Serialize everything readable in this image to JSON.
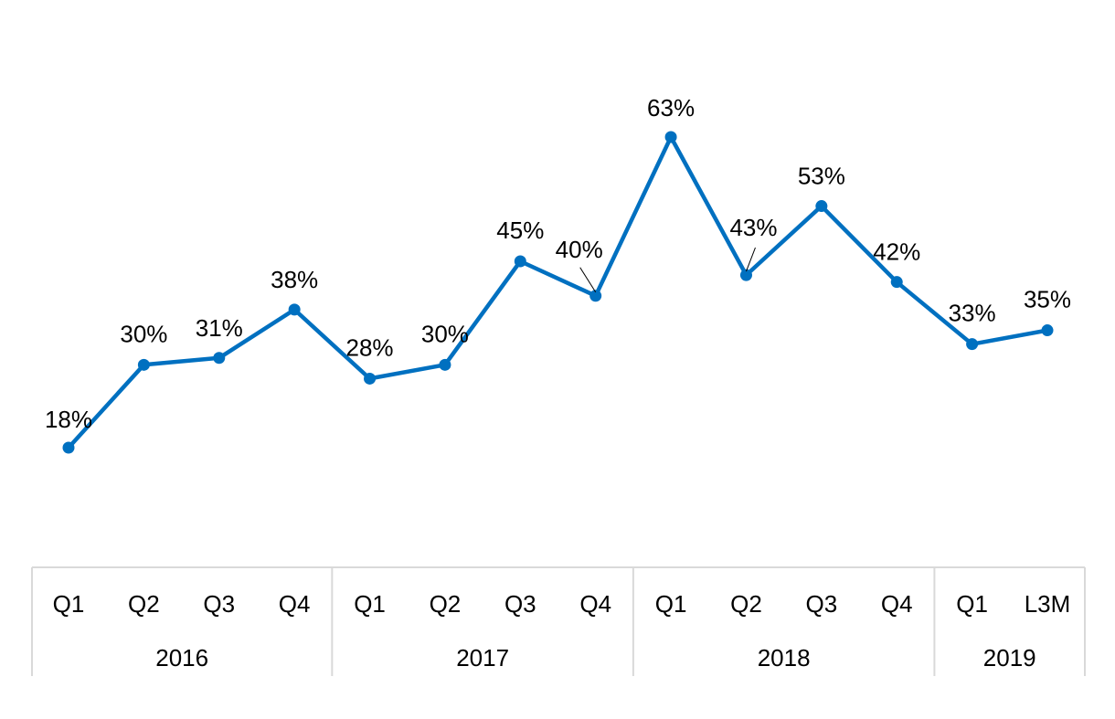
{
  "chart_data": {
    "type": "line",
    "title": "",
    "xlabel": "",
    "ylabel": "",
    "ylim": [
      0,
      70
    ],
    "grid": false,
    "legend": "none",
    "line_color": "#0070C0",
    "categories": [
      "Q1",
      "Q2",
      "Q3",
      "Q4",
      "Q1",
      "Q2",
      "Q3",
      "Q4",
      "Q1",
      "Q2",
      "Q3",
      "Q4",
      "Q1",
      "L3M"
    ],
    "groups": [
      {
        "label": "2016",
        "count": 4
      },
      {
        "label": "2017",
        "count": 4
      },
      {
        "label": "2018",
        "count": 4
      },
      {
        "label": "2019",
        "count": 2
      }
    ],
    "values": [
      18,
      30,
      31,
      38,
      28,
      30,
      45,
      40,
      63,
      43,
      53,
      42,
      33,
      35
    ],
    "data_labels": [
      "18%",
      "30%",
      "31%",
      "38%",
      "28%",
      "30%",
      "45%",
      "40%",
      "63%",
      "43%",
      "53%",
      "42%",
      "33%",
      "35%"
    ]
  }
}
